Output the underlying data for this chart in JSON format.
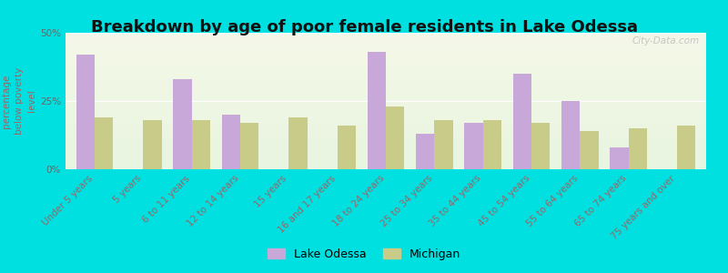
{
  "title": "Breakdown by age of poor female residents in Lake Odessa",
  "ylabel": "percentage\nbelow poverty\nlevel",
  "categories": [
    "Under 5 years",
    "5 years",
    "6 to 11 years",
    "12 to 14 years",
    "15 years",
    "16 and 17 years",
    "18 to 24 years",
    "25 to 34 years",
    "35 to 44 years",
    "45 to 54 years",
    "55 to 64 years",
    "65 to 74 years",
    "75 years and over"
  ],
  "lake_odessa": [
    42,
    0,
    33,
    20,
    0,
    0,
    43,
    13,
    17,
    35,
    25,
    8,
    0
  ],
  "michigan": [
    19,
    18,
    18,
    17,
    19,
    16,
    23,
    18,
    18,
    17,
    14,
    15,
    16
  ],
  "bar_color_lake": "#c8a8d8",
  "bar_color_michigan": "#c8cc88",
  "background_color": "#00e0e0",
  "ylim": [
    0,
    50
  ],
  "yticks": [
    0,
    25,
    50
  ],
  "ytick_labels": [
    "0%",
    "25%",
    "50%"
  ],
  "bar_width": 0.38,
  "title_fontsize": 13,
  "axis_label_fontsize": 7.5,
  "tick_label_fontsize": 7.5,
  "legend_fontsize": 9,
  "watermark": "City-Data.com"
}
